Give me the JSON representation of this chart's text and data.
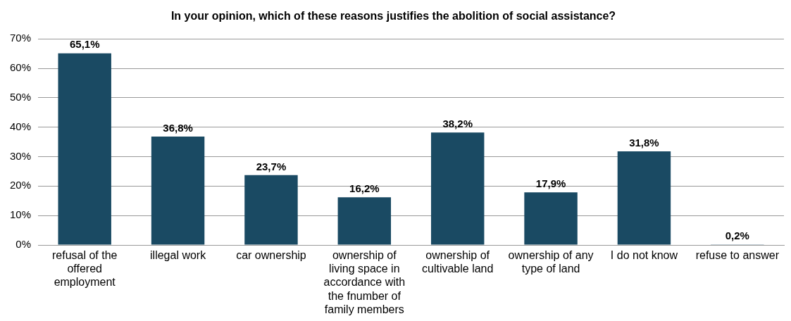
{
  "chart_data": {
    "type": "bar",
    "title": "In your opinion, which of these reasons justifies the abolition of social assistance?",
    "categories": [
      "refusal of the offered employment",
      "illegal work",
      "car ownership",
      "ownership of living space in accordance with the fnumber of family members",
      "ownership of cultivable land",
      "ownership of any type of land",
      "I do not know",
      "refuse to answer"
    ],
    "values": [
      65.1,
      36.8,
      23.7,
      16.2,
      38.2,
      17.9,
      31.8,
      0.2
    ],
    "value_labels": [
      "65,1%",
      "36,8%",
      "23,7%",
      "16,2%",
      "38,2%",
      "17,9%",
      "31,8%",
      "0,2%"
    ],
    "color": "#1a4a63",
    "ylim": [
      0,
      70
    ],
    "yticks": [
      {
        "value": 0,
        "label": "0%"
      },
      {
        "value": 10,
        "label": "10%"
      },
      {
        "value": 20,
        "label": "20%"
      },
      {
        "value": 30,
        "label": "30%"
      },
      {
        "value": 40,
        "label": "40%"
      },
      {
        "value": 50,
        "label": "50%"
      },
      {
        "value": 60,
        "label": "60%"
      },
      {
        "value": 70,
        "label": "70%"
      }
    ],
    "grid": "y",
    "legend": false
  }
}
